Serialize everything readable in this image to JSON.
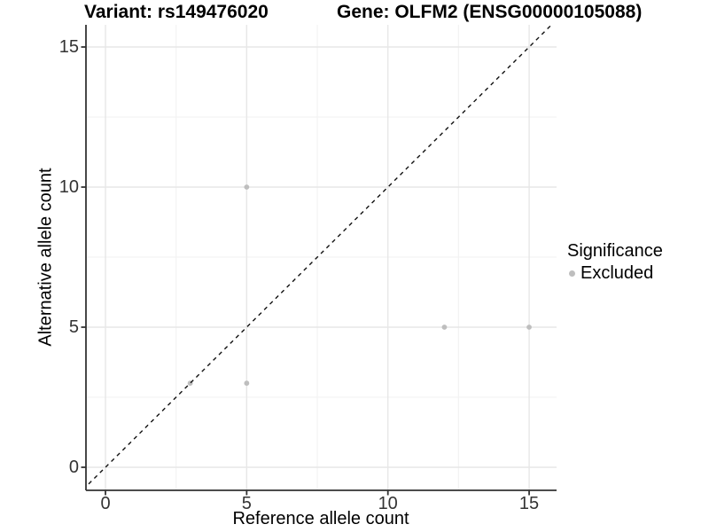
{
  "chart_data": {
    "type": "scatter",
    "titles": {
      "left": "Variant: rs149476020",
      "right": "Gene: OLFM2 (ENSG00000105088)"
    },
    "xlabel": "Reference allele count",
    "ylabel": "Alternative allele count",
    "x_ticks": [
      0,
      5,
      10,
      15
    ],
    "y_ticks": [
      0,
      5,
      10,
      15
    ],
    "x_minor_gridlines": [
      2.5,
      7.5,
      12.5
    ],
    "y_minor_gridlines": [
      2.5,
      7.5,
      12.5
    ],
    "xlim": [
      -0.7,
      16.0
    ],
    "ylim": [
      -0.85,
      15.75
    ],
    "grid": "major+minor",
    "identity_line": {
      "equation": "y = x",
      "style": "dashed",
      "color": "#111111"
    },
    "series": [
      {
        "name": "Excluded",
        "color": "#bebebe",
        "points": [
          {
            "x": 3,
            "y": 3
          },
          {
            "x": 5,
            "y": 3
          },
          {
            "x": 5,
            "y": 10
          },
          {
            "x": 12,
            "y": 5
          },
          {
            "x": 15,
            "y": 5
          }
        ]
      }
    ],
    "legend": {
      "position": "right",
      "title": "Significance",
      "items": [
        {
          "label": "Excluded",
          "color": "#bebebe",
          "marker": "circle"
        }
      ]
    },
    "style_colors": {
      "grid_major": "#e7e7e7",
      "grid_minor": "#f3f3f3",
      "axis_line": "#333333",
      "tick_label": "#333333"
    }
  }
}
